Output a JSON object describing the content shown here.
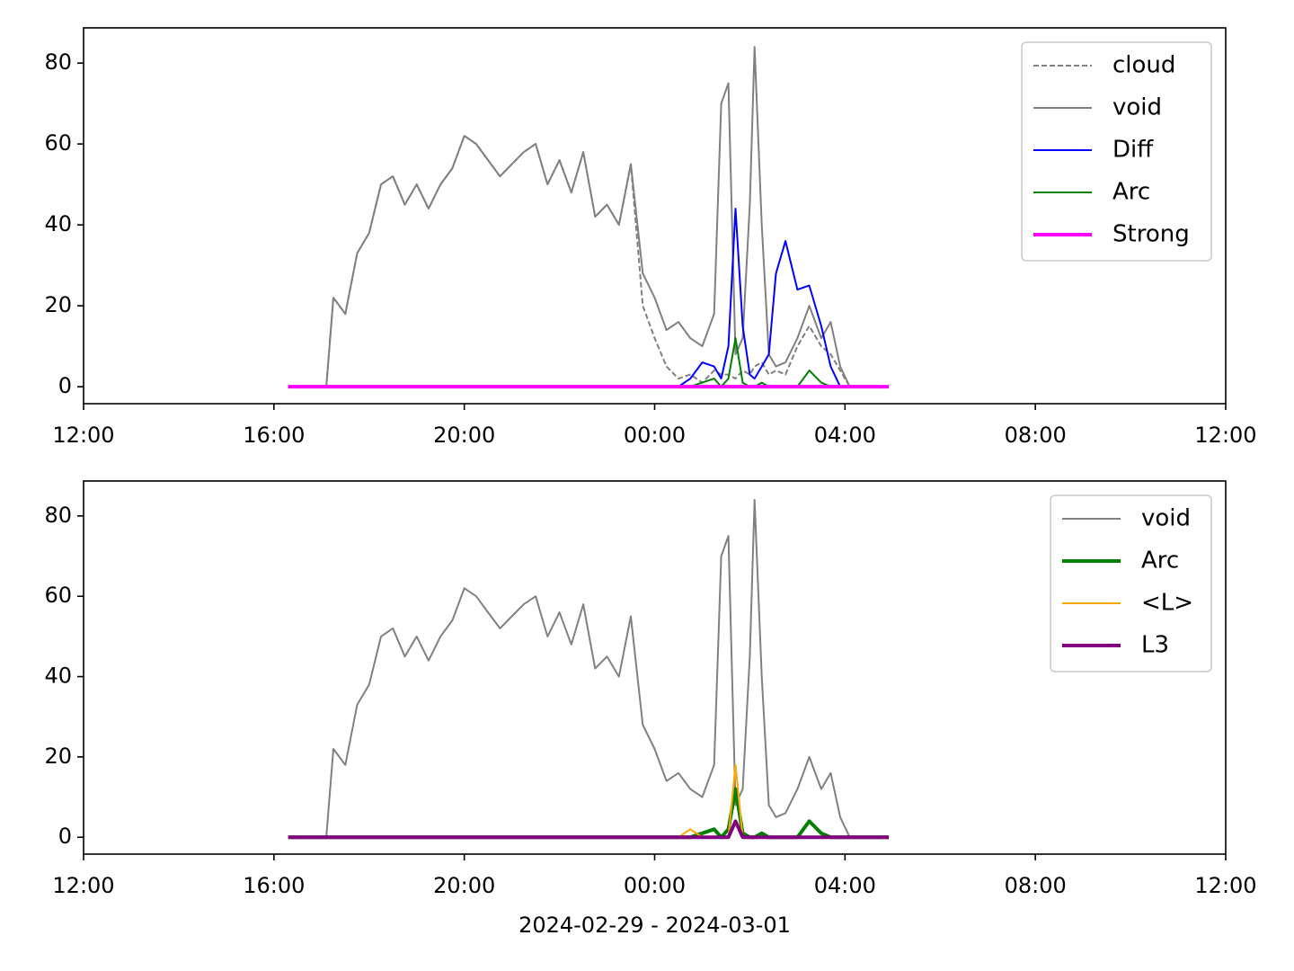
{
  "chart_data": [
    {
      "type": "line",
      "x": [
        16.3,
        16.75,
        17.1,
        17.25,
        17.5,
        17.75,
        18.0,
        18.25,
        18.5,
        18.75,
        19.0,
        19.25,
        19.5,
        19.75,
        20.0,
        20.25,
        20.5,
        20.75,
        21.0,
        21.25,
        21.5,
        21.75,
        22.0,
        22.25,
        22.5,
        22.75,
        23.0,
        23.25,
        23.5,
        23.75,
        24.0,
        24.25,
        24.5,
        24.75,
        25.0,
        25.25,
        25.4,
        25.55,
        25.7,
        25.85,
        26.0,
        26.1,
        26.25,
        26.4,
        26.55,
        26.75,
        27.0,
        27.25,
        27.5,
        27.7,
        27.9,
        28.1,
        28.5,
        28.92
      ],
      "series": [
        {
          "name": "cloud",
          "color": "#808080",
          "dash": true,
          "width": 2,
          "values": [
            0,
            0,
            0,
            22,
            18,
            33,
            38,
            50,
            52,
            45,
            50,
            44,
            50,
            54,
            62,
            60,
            56,
            52,
            55,
            58,
            60,
            50,
            56,
            48,
            58,
            42,
            45,
            40,
            55,
            20,
            12,
            5,
            2,
            3,
            1,
            4,
            3,
            3,
            2,
            4,
            3,
            5,
            6,
            3,
            4,
            3,
            10,
            15,
            10,
            8,
            4,
            0,
            0,
            0
          ]
        },
        {
          "name": "void",
          "color": "#808080",
          "width": 2,
          "values": [
            0,
            0,
            0,
            22,
            18,
            33,
            38,
            50,
            52,
            45,
            50,
            44,
            50,
            54,
            62,
            60,
            56,
            52,
            55,
            58,
            60,
            50,
            56,
            48,
            58,
            42,
            45,
            40,
            55,
            28,
            22,
            14,
            16,
            12,
            10,
            18,
            70,
            75,
            8,
            12,
            45,
            84,
            40,
            8,
            5,
            6,
            12,
            20,
            12,
            16,
            5,
            0,
            0,
            0
          ]
        },
        {
          "name": "Diff",
          "color": "#0000ff",
          "width": 2,
          "values": [
            null,
            null,
            null,
            null,
            null,
            null,
            null,
            null,
            null,
            null,
            null,
            null,
            null,
            null,
            null,
            null,
            null,
            null,
            null,
            null,
            null,
            null,
            null,
            null,
            null,
            null,
            null,
            null,
            null,
            null,
            null,
            null,
            0,
            2,
            6,
            5,
            2,
            10,
            44,
            15,
            3,
            2,
            5,
            8,
            28,
            36,
            24,
            25,
            15,
            5,
            0,
            0,
            null,
            null
          ]
        },
        {
          "name": "Arc",
          "color": "#008000",
          "width": 2,
          "values": [
            null,
            null,
            null,
            null,
            null,
            null,
            null,
            null,
            null,
            null,
            null,
            null,
            null,
            null,
            null,
            null,
            null,
            null,
            null,
            null,
            null,
            null,
            null,
            null,
            null,
            null,
            null,
            null,
            null,
            null,
            null,
            null,
            0,
            0,
            1,
            2,
            0,
            2,
            12,
            1,
            0,
            0,
            1,
            0,
            0,
            0,
            0,
            4,
            1,
            0,
            0,
            0,
            null,
            null
          ]
        },
        {
          "name": "Strong",
          "color": "#ff00ff",
          "width": 4,
          "values": [
            0,
            0,
            0,
            0,
            0,
            0,
            0,
            0,
            0,
            0,
            0,
            0,
            0,
            0,
            0,
            0,
            0,
            0,
            0,
            0,
            0,
            0,
            0,
            0,
            0,
            0,
            0,
            0,
            0,
            0,
            0,
            0,
            0,
            0,
            0,
            0,
            0,
            0,
            0,
            0,
            0,
            0,
            0,
            0,
            0,
            0,
            0,
            0,
            0,
            0,
            0,
            0,
            0,
            0
          ]
        }
      ],
      "xlim": [
        12,
        36
      ],
      "xticks": [
        {
          "value": 12,
          "label": "12:00"
        },
        {
          "value": 16,
          "label": "16:00"
        },
        {
          "value": 20,
          "label": "20:00"
        },
        {
          "value": 24,
          "label": "00:00"
        },
        {
          "value": 28,
          "label": "04:00"
        },
        {
          "value": 32,
          "label": "08:00"
        },
        {
          "value": 36,
          "label": "12:00"
        }
      ],
      "ylim": [
        -4.2,
        88.7
      ],
      "yticks": [
        0,
        20,
        40,
        60,
        80
      ],
      "legend": "upper right"
    },
    {
      "type": "line",
      "x": [
        16.3,
        16.75,
        17.1,
        17.25,
        17.5,
        17.75,
        18.0,
        18.25,
        18.5,
        18.75,
        19.0,
        19.25,
        19.5,
        19.75,
        20.0,
        20.25,
        20.5,
        20.75,
        21.0,
        21.25,
        21.5,
        21.75,
        22.0,
        22.25,
        22.5,
        22.75,
        23.0,
        23.25,
        23.5,
        23.75,
        24.0,
        24.25,
        24.5,
        24.75,
        25.0,
        25.25,
        25.4,
        25.55,
        25.7,
        25.85,
        26.0,
        26.1,
        26.25,
        26.4,
        26.55,
        26.75,
        27.0,
        27.25,
        27.5,
        27.7,
        27.9,
        28.1,
        28.5,
        28.92
      ],
      "series": [
        {
          "name": "void",
          "color": "#808080",
          "width": 2,
          "values": [
            0,
            0,
            0,
            22,
            18,
            33,
            38,
            50,
            52,
            45,
            50,
            44,
            50,
            54,
            62,
            60,
            56,
            52,
            55,
            58,
            60,
            50,
            56,
            48,
            58,
            42,
            45,
            40,
            55,
            28,
            22,
            14,
            16,
            12,
            10,
            18,
            70,
            75,
            8,
            12,
            45,
            84,
            40,
            8,
            5,
            6,
            12,
            20,
            12,
            16,
            5,
            0,
            0,
            0
          ]
        },
        {
          "name": "Arc",
          "color": "#008000",
          "width": 4,
          "values": [
            0,
            0,
            0,
            0,
            0,
            0,
            0,
            0,
            0,
            0,
            0,
            0,
            0,
            0,
            0,
            0,
            0,
            0,
            0,
            0,
            0,
            0,
            0,
            0,
            0,
            0,
            0,
            0,
            0,
            0,
            0,
            0,
            0,
            0,
            1,
            2,
            0,
            2,
            12,
            1,
            0,
            0,
            1,
            0,
            0,
            0,
            0,
            4,
            1,
            0,
            0,
            0,
            0,
            0
          ]
        },
        {
          "name": "<L>",
          "color": "#ffa500",
          "width": 2,
          "values": [
            0,
            0,
            0,
            0,
            0,
            0,
            0,
            0,
            0,
            0,
            0,
            0,
            0,
            0,
            0,
            0,
            0,
            0,
            0,
            0,
            0,
            0,
            0,
            0,
            0,
            0,
            0,
            0,
            0,
            0,
            0,
            0,
            0,
            2,
            0,
            0,
            0,
            0,
            18,
            0,
            0,
            0,
            0,
            0,
            0,
            0,
            0,
            0,
            0,
            0,
            0,
            0,
            0,
            0
          ]
        },
        {
          "name": "L3",
          "color": "#800080",
          "width": 4,
          "values": [
            0,
            0,
            0,
            0,
            0,
            0,
            0,
            0,
            0,
            0,
            0,
            0,
            0,
            0,
            0,
            0,
            0,
            0,
            0,
            0,
            0,
            0,
            0,
            0,
            0,
            0,
            0,
            0,
            0,
            0,
            0,
            0,
            0,
            0,
            0,
            0,
            0,
            0,
            4,
            0,
            0,
            0,
            0,
            0,
            0,
            0,
            0,
            0,
            0,
            0,
            0,
            0,
            0,
            0
          ]
        }
      ],
      "xlim": [
        12,
        36
      ],
      "xticks": [
        {
          "value": 12,
          "label": "12:00"
        },
        {
          "value": 16,
          "label": "16:00"
        },
        {
          "value": 20,
          "label": "20:00"
        },
        {
          "value": 24,
          "label": "00:00"
        },
        {
          "value": 28,
          "label": "04:00"
        },
        {
          "value": 32,
          "label": "08:00"
        },
        {
          "value": 36,
          "label": "12:00"
        }
      ],
      "ylim": [
        -4.2,
        88.7
      ],
      "yticks": [
        0,
        20,
        40,
        60,
        80
      ],
      "xlabel": "2024-02-29 - 2024-03-01",
      "legend": "upper right"
    }
  ]
}
